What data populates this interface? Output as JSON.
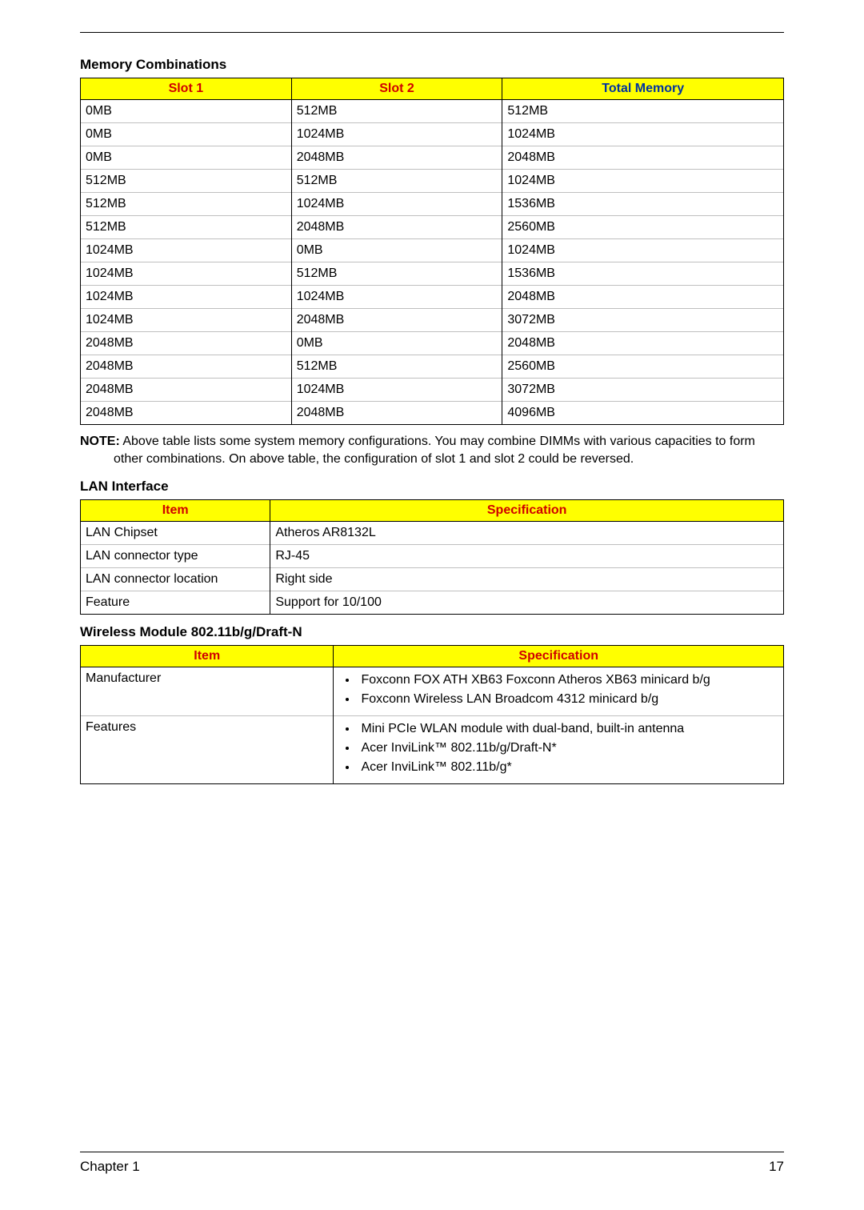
{
  "page": {
    "chapter_label": "Chapter 1",
    "page_number": "17"
  },
  "memory": {
    "title": "Memory Combinations",
    "headers": {
      "slot1": "Slot 1",
      "slot2": "Slot 2",
      "total": "Total Memory"
    },
    "header_colors": {
      "slot1": "#d00000",
      "slot2": "#d00000",
      "total": "#0033a0",
      "background": "#ffff00"
    },
    "col_widths": [
      "30%",
      "30%",
      "40%"
    ],
    "rows": [
      [
        "0MB",
        "512MB",
        "512MB"
      ],
      [
        "0MB",
        "1024MB",
        "1024MB"
      ],
      [
        "0MB",
        "2048MB",
        "2048MB"
      ],
      [
        "512MB",
        "512MB",
        "1024MB"
      ],
      [
        "512MB",
        "1024MB",
        "1536MB"
      ],
      [
        "512MB",
        "2048MB",
        "2560MB"
      ],
      [
        "1024MB",
        "0MB",
        "1024MB"
      ],
      [
        "1024MB",
        "512MB",
        "1536MB"
      ],
      [
        "1024MB",
        "1024MB",
        "2048MB"
      ],
      [
        "1024MB",
        "2048MB",
        "3072MB"
      ],
      [
        "2048MB",
        "0MB",
        "2048MB"
      ],
      [
        "2048MB",
        "512MB",
        "2560MB"
      ],
      [
        "2048MB",
        "1024MB",
        "3072MB"
      ],
      [
        "2048MB",
        "2048MB",
        "4096MB"
      ]
    ]
  },
  "note": {
    "label": "NOTE:",
    "text": "Above table lists some system memory configurations. You may combine DIMMs with various capacities to form other combinations. On above table, the configuration of slot 1 and slot 2 could be reversed."
  },
  "lan": {
    "title": "LAN Interface",
    "headers": {
      "item": "Item",
      "spec": "Specification"
    },
    "col_widths": [
      "27%",
      "73%"
    ],
    "rows": [
      [
        "LAN Chipset",
        "Atheros AR8132L"
      ],
      [
        "LAN connector type",
        "RJ-45"
      ],
      [
        "LAN connector location",
        "Right side"
      ],
      [
        "Feature",
        "Support for 10/100"
      ]
    ]
  },
  "wireless": {
    "title": "Wireless Module 802.11b/g/Draft-N",
    "headers": {
      "item": "Item",
      "spec": "Specification"
    },
    "col_widths": [
      "36%",
      "64%"
    ],
    "rows": [
      {
        "item": "Manufacturer",
        "bullets": [
          "Foxconn FOX ATH XB63 Foxconn Atheros XB63 minicard b/g",
          "Foxconn Wireless LAN Broadcom 4312 minicard b/g"
        ]
      },
      {
        "item": "Features",
        "bullets": [
          "Mini PCIe WLAN module with dual-band, built-in antenna",
          "Acer InviLink™ 802.11b/g/Draft-N*",
          "Acer InviLink™ 802.11b/g*"
        ]
      }
    ]
  },
  "styling": {
    "font_family": "Arial, Helvetica, sans-serif",
    "body_font_size": 16,
    "header_bg": "#ffff00",
    "border_color": "#000000",
    "row_divider_color": "#bfbfbf",
    "header_red": "#d00000",
    "header_blue": "#0033a0",
    "background_color": "#ffffff"
  }
}
